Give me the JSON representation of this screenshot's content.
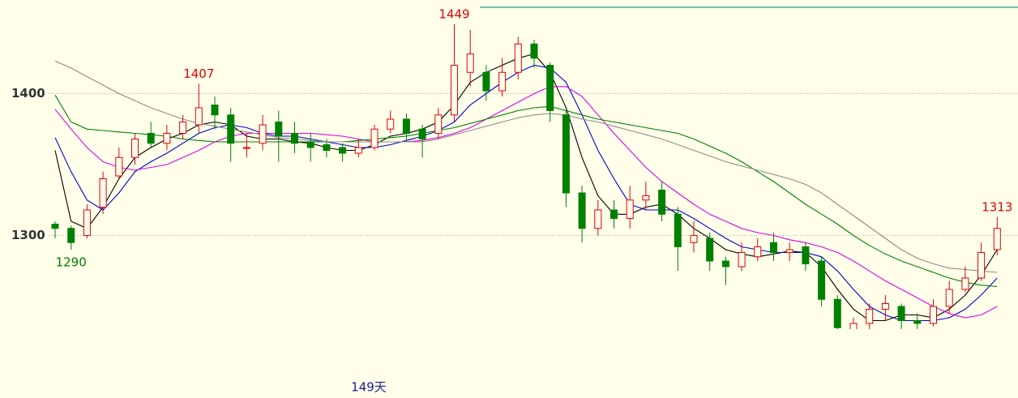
{
  "chart_data": {
    "type": "candlestick",
    "x_label": "149天",
    "ylim": [
      1234,
      1466
    ],
    "yticks": [
      1300,
      1400
    ],
    "grid": true,
    "up_color": "#e60000",
    "down_color": "#008000",
    "open": [
      1308,
      1305,
      1300,
      1320,
      1342,
      1355,
      1372,
      1365,
      1372,
      1378,
      1392,
      1385,
      1362,
      1365,
      1380,
      1372,
      1366,
      1364,
      1362,
      1358,
      1362,
      1375,
      1382,
      1375,
      1372,
      1385,
      1415,
      1415,
      1402,
      1415,
      1435,
      1420,
      1385,
      1330,
      1305,
      1318,
      1312,
      1325,
      1332,
      1315,
      1295,
      1298,
      1282,
      1278,
      1285,
      1295,
      1288,
      1292,
      1282,
      1255,
      1232,
      1238,
      1248,
      1250,
      1240,
      1238,
      1250,
      1262,
      1270,
      1290
    ],
    "high": [
      1310,
      1307,
      1322,
      1345,
      1362,
      1372,
      1380,
      1378,
      1385,
      1407,
      1398,
      1390,
      1372,
      1385,
      1388,
      1380,
      1372,
      1368,
      1365,
      1368,
      1378,
      1388,
      1386,
      1378,
      1390,
      1449,
      1445,
      1420,
      1425,
      1440,
      1438,
      1422,
      1388,
      1335,
      1325,
      1325,
      1335,
      1338,
      1338,
      1320,
      1310,
      1302,
      1285,
      1295,
      1298,
      1302,
      1295,
      1295,
      1285,
      1258,
      1242,
      1252,
      1258,
      1252,
      1245,
      1255,
      1268,
      1278,
      1295,
      1313
    ],
    "low": [
      1298,
      1290,
      1298,
      1315,
      1340,
      1350,
      1362,
      1360,
      1368,
      1372,
      1375,
      1352,
      1355,
      1360,
      1352,
      1358,
      1352,
      1355,
      1352,
      1355,
      1360,
      1372,
      1366,
      1355,
      1368,
      1380,
      1405,
      1395,
      1398,
      1410,
      1418,
      1380,
      1320,
      1295,
      1300,
      1305,
      1305,
      1318,
      1310,
      1275,
      1288,
      1275,
      1265,
      1275,
      1282,
      1282,
      1282,
      1275,
      1250,
      1230,
      1228,
      1234,
      1240,
      1234,
      1234,
      1236,
      1245,
      1260,
      1268,
      1286
    ],
    "close": [
      1305,
      1295,
      1318,
      1340,
      1355,
      1368,
      1365,
      1372,
      1380,
      1390,
      1385,
      1365,
      1362,
      1378,
      1370,
      1365,
      1362,
      1360,
      1358,
      1362,
      1375,
      1382,
      1372,
      1368,
      1385,
      1420,
      1428,
      1402,
      1415,
      1435,
      1425,
      1388,
      1330,
      1305,
      1318,
      1312,
      1325,
      1328,
      1315,
      1292,
      1300,
      1282,
      1278,
      1288,
      1292,
      1288,
      1290,
      1280,
      1255,
      1235,
      1238,
      1248,
      1252,
      1240,
      1238,
      1250,
      1262,
      1270,
      1288,
      1305
    ],
    "high_labels": [
      null,
      null,
      null,
      null,
      null,
      null,
      null,
      null,
      null,
      "1407",
      null,
      null,
      null,
      null,
      null,
      null,
      null,
      null,
      null,
      null,
      null,
      null,
      null,
      null,
      null,
      "1449",
      null,
      null,
      null,
      null,
      null,
      null,
      null,
      null,
      null,
      null,
      null,
      null,
      null,
      null,
      null,
      null,
      null,
      null,
      null,
      null,
      null,
      null,
      null,
      null,
      null,
      null,
      null,
      null,
      null,
      null,
      null,
      null,
      null,
      "1313"
    ],
    "low_labels": [
      null,
      "1290",
      null,
      null,
      null,
      null,
      null,
      null,
      null,
      null,
      null,
      null,
      null,
      null,
      null,
      null,
      null,
      null,
      null,
      null,
      null,
      null,
      null,
      null,
      null,
      null,
      null,
      null,
      null,
      null,
      null,
      null,
      null,
      null,
      null,
      null,
      null,
      null,
      null,
      null,
      null,
      null,
      null,
      null,
      null,
      null,
      null,
      null,
      null,
      null,
      null,
      null,
      null,
      null,
      null,
      null,
      null,
      null,
      null,
      null
    ],
    "series": [
      {
        "color": "#000000",
        "values": [
          1360,
          1310,
          1305,
          1320,
          1340,
          1355,
          1362,
          1368,
          1372,
          1378,
          1380,
          1378,
          1370,
          1368,
          1368,
          1366,
          1365,
          1362,
          1360,
          1360,
          1364,
          1370,
          1372,
          1375,
          1380,
          1392,
          1408,
          1415,
          1420,
          1425,
          1428,
          1415,
          1390,
          1355,
          1328,
          1315,
          1315,
          1320,
          1322,
          1315,
          1305,
          1298,
          1290,
          1287,
          1285,
          1287,
          1289,
          1288,
          1278,
          1262,
          1248,
          1240,
          1240,
          1244,
          1244,
          1242,
          1248,
          1258,
          1272,
          1290
        ]
      },
      {
        "color": "#0000cc",
        "values": [
          1369,
          1345,
          1325,
          1318,
          1330,
          1345,
          1352,
          1358,
          1365,
          1372,
          1376,
          1378,
          1376,
          1372,
          1370,
          1370,
          1368,
          1366,
          1364,
          1362,
          1362,
          1364,
          1367,
          1370,
          1374,
          1380,
          1392,
          1400,
          1408,
          1415,
          1420,
          1418,
          1408,
          1385,
          1360,
          1340,
          1322,
          1318,
          1318,
          1318,
          1312,
          1305,
          1298,
          1292,
          1290,
          1288,
          1288,
          1288,
          1285,
          1275,
          1262,
          1250,
          1244,
          1240,
          1240,
          1240,
          1242,
          1248,
          1258,
          1270
        ]
      },
      {
        "color": "#e000e0",
        "values": [
          1389,
          1375,
          1362,
          1352,
          1348,
          1346,
          1348,
          1350,
          1355,
          1360,
          1366,
          1370,
          1372,
          1372,
          1372,
          1372,
          1372,
          1371,
          1370,
          1368,
          1366,
          1366,
          1366,
          1367,
          1369,
          1372,
          1376,
          1382,
          1388,
          1394,
          1400,
          1405,
          1405,
          1398,
          1385,
          1372,
          1360,
          1348,
          1338,
          1330,
          1322,
          1315,
          1310,
          1305,
          1302,
          1300,
          1297,
          1295,
          1292,
          1288,
          1282,
          1275,
          1268,
          1262,
          1256,
          1250,
          1245,
          1242,
          1244,
          1250
        ]
      },
      {
        "color": "#008000",
        "values": [
          1399,
          1380,
          1375,
          1374,
          1373,
          1372,
          1371,
          1370,
          1368,
          1367,
          1366,
          1366,
          1366,
          1366,
          1366,
          1366,
          1366,
          1366,
          1366,
          1367,
          1368,
          1369,
          1370,
          1372,
          1374,
          1376,
          1379,
          1382,
          1385,
          1388,
          1390,
          1391,
          1388,
          1385,
          1382,
          1380,
          1378,
          1376,
          1374,
          1372,
          1368,
          1363,
          1358,
          1352,
          1345,
          1338,
          1330,
          1322,
          1315,
          1308,
          1300,
          1293,
          1287,
          1282,
          1278,
          1274,
          1270,
          1267,
          1265,
          1264
        ]
      },
      {
        "color": "#8c8c8c",
        "values": [
          1423,
          1418,
          1412,
          1406,
          1400,
          1395,
          1390,
          1386,
          1382,
          1379,
          1377,
          1375,
          1373,
          1371,
          1369,
          1368,
          1367,
          1366,
          1366,
          1366,
          1366,
          1366,
          1366,
          1366,
          1368,
          1371,
          1374,
          1377,
          1380,
          1383,
          1385,
          1386,
          1385,
          1382,
          1380,
          1377,
          1374,
          1371,
          1368,
          1364,
          1360,
          1356,
          1352,
          1349,
          1346,
          1343,
          1340,
          1336,
          1330,
          1322,
          1314,
          1306,
          1298,
          1290,
          1284,
          1280,
          1277,
          1276,
          1275,
          1274
        ]
      }
    ]
  }
}
